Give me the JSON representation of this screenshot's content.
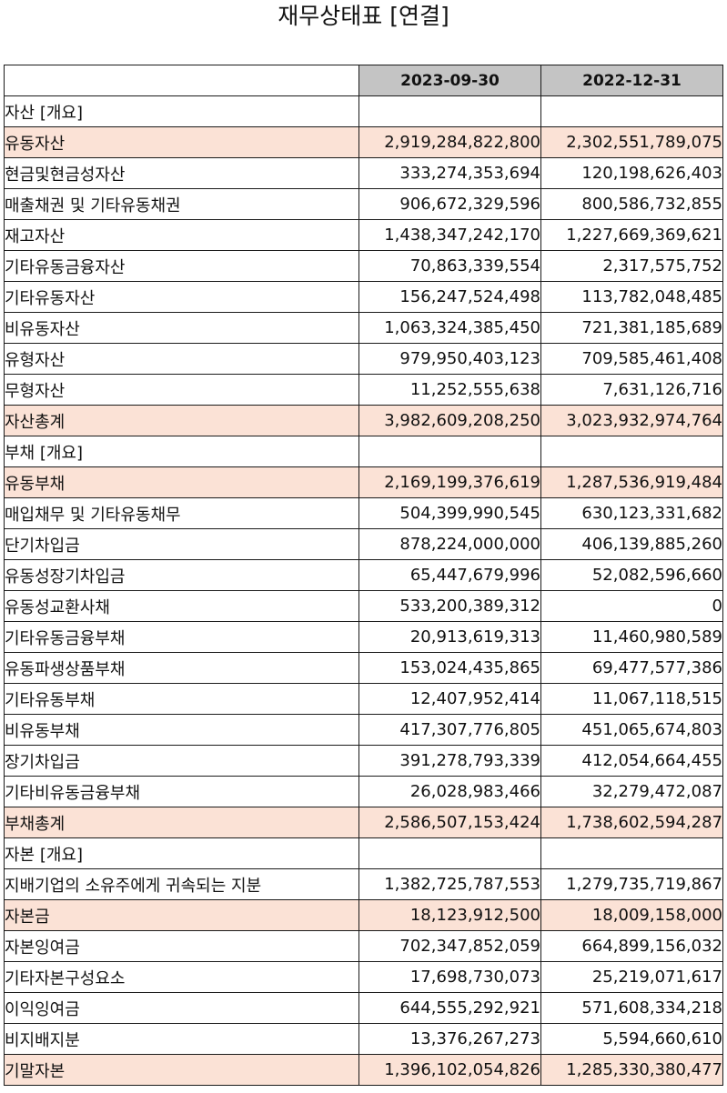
{
  "title": "재무상태표 [연결]",
  "columns": [
    "",
    "2023-09-30",
    "2022-12-31"
  ],
  "highlight_color": "#fbe2d6",
  "header_color": "#c4c4c4",
  "rows": [
    {
      "label": "자산 [개요]",
      "level": 0,
      "highlight": false,
      "v1": "",
      "v2": ""
    },
    {
      "label": "유동자산",
      "level": 1,
      "highlight": true,
      "v1": "2,919,284,822,800",
      "v2": "2,302,551,789,075"
    },
    {
      "label": "현금및현금성자산",
      "level": 2,
      "highlight": false,
      "v1": "333,274,353,694",
      "v2": "120,198,626,403"
    },
    {
      "label": "매출채권 및 기타유동채권",
      "level": 2,
      "highlight": false,
      "v1": "906,672,329,596",
      "v2": "800,586,732,855"
    },
    {
      "label": "재고자산",
      "level": 2,
      "highlight": false,
      "v1": "1,438,347,242,170",
      "v2": "1,227,669,369,621"
    },
    {
      "label": "기타유동금융자산",
      "level": 2,
      "highlight": false,
      "v1": "70,863,339,554",
      "v2": "2,317,575,752"
    },
    {
      "label": "기타유동자산",
      "level": 2,
      "highlight": false,
      "v1": "156,247,524,498",
      "v2": "113,782,048,485"
    },
    {
      "label": "비유동자산",
      "level": 1,
      "highlight": false,
      "v1": "1,063,324,385,450",
      "v2": "721,381,185,689"
    },
    {
      "label": "유형자산",
      "level": 2,
      "highlight": false,
      "v1": "979,950,403,123",
      "v2": "709,585,461,408"
    },
    {
      "label": "무형자산",
      "level": 2,
      "highlight": false,
      "v1": "11,252,555,638",
      "v2": "7,631,126,716"
    },
    {
      "label": "자산총계",
      "level": 1,
      "highlight": true,
      "v1": "3,982,609,208,250",
      "v2": "3,023,932,974,764"
    },
    {
      "label": "부채 [개요]",
      "level": 0,
      "highlight": false,
      "v1": "",
      "v2": ""
    },
    {
      "label": "유동부채",
      "level": 1,
      "highlight": true,
      "v1": "2,169,199,376,619",
      "v2": "1,287,536,919,484"
    },
    {
      "label": "매입채무 및 기타유동채무",
      "level": 2,
      "highlight": false,
      "v1": "504,399,990,545",
      "v2": "630,123,331,682"
    },
    {
      "label": "단기차입금",
      "level": 2,
      "highlight": false,
      "v1": "878,224,000,000",
      "v2": "406,139,885,260"
    },
    {
      "label": "유동성장기차입금",
      "level": 2,
      "highlight": false,
      "v1": "65,447,679,996",
      "v2": "52,082,596,660"
    },
    {
      "label": "유동성교환사채",
      "level": 2,
      "highlight": false,
      "v1": "533,200,389,312",
      "v2": "0"
    },
    {
      "label": "기타유동금융부채",
      "level": 2,
      "highlight": false,
      "v1": "20,913,619,313",
      "v2": "11,460,980,589"
    },
    {
      "label": "유동파생상품부채",
      "level": 2,
      "highlight": false,
      "v1": "153,024,435,865",
      "v2": "69,477,577,386"
    },
    {
      "label": "기타유동부채",
      "level": 2,
      "highlight": false,
      "v1": "12,407,952,414",
      "v2": "11,067,118,515"
    },
    {
      "label": "비유동부채",
      "level": 1,
      "highlight": false,
      "v1": "417,307,776,805",
      "v2": "451,065,674,803"
    },
    {
      "label": "장기차입금",
      "level": 2,
      "highlight": false,
      "v1": "391,278,793,339",
      "v2": "412,054,664,455"
    },
    {
      "label": "기타비유동금융부채",
      "level": 2,
      "highlight": false,
      "v1": "26,028,983,466",
      "v2": "32,279,472,087"
    },
    {
      "label": "부채총계",
      "level": 1,
      "highlight": true,
      "v1": "2,586,507,153,424",
      "v2": "1,738,602,594,287"
    },
    {
      "label": "자본 [개요]",
      "level": 0,
      "highlight": false,
      "v1": "",
      "v2": ""
    },
    {
      "label": "지배기업의 소유주에게 귀속되는 지분",
      "level": 1,
      "highlight": false,
      "v1": "1,382,725,787,553",
      "v2": "1,279,735,719,867"
    },
    {
      "label": "자본금",
      "level": 2,
      "highlight": true,
      "v1": "18,123,912,500",
      "v2": "18,009,158,000"
    },
    {
      "label": "자본잉여금",
      "level": 2,
      "highlight": false,
      "v1": "702,347,852,059",
      "v2": "664,899,156,032"
    },
    {
      "label": "기타자본구성요소",
      "level": 2,
      "highlight": false,
      "v1": "17,698,730,073",
      "v2": "25,219,071,617"
    },
    {
      "label": "이익잉여금",
      "level": 2,
      "highlight": false,
      "v1": "644,555,292,921",
      "v2": "571,608,334,218"
    },
    {
      "label": "비지배지분",
      "level": 1,
      "highlight": false,
      "v1": "13,376,267,273",
      "v2": "5,594,660,610"
    },
    {
      "label": "기말자본",
      "level": 1,
      "highlight": true,
      "v1": "1,396,102,054,826",
      "v2": "1,285,330,380,477"
    }
  ]
}
